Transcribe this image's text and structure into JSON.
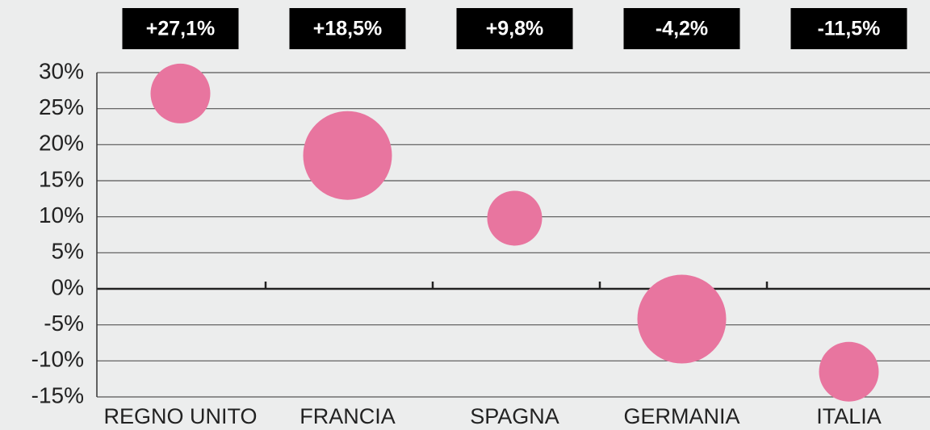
{
  "chart_data": {
    "type": "bubble",
    "categories": [
      "REGNO UNITO",
      "FRANCIA",
      "SPAGNA",
      "GERMANIA",
      "ITALIA"
    ],
    "values": [
      27.1,
      18.5,
      9.8,
      -4.2,
      -11.5
    ],
    "value_labels": [
      "+27,1%",
      "+18,5%",
      "+9,8%",
      "-4,2%",
      "-11,5%"
    ],
    "sizes": [
      37,
      55,
      34,
      55,
      37
    ],
    "color": "#e8759f",
    "ylim": [
      -15,
      30
    ],
    "yticks": [
      {
        "value": -15,
        "label": "-15%"
      },
      {
        "value": -10,
        "label": "-10%"
      },
      {
        "value": -5,
        "label": "-5%"
      },
      {
        "value": 0,
        "label": "0%"
      },
      {
        "value": 5,
        "label": "5%"
      },
      {
        "value": 10,
        "label": "10%"
      },
      {
        "value": 15,
        "label": "15%"
      },
      {
        "value": 20,
        "label": "20%"
      },
      {
        "value": 25,
        "label": "25%"
      },
      {
        "value": 30,
        "label": "30%"
      }
    ],
    "grid": true
  }
}
